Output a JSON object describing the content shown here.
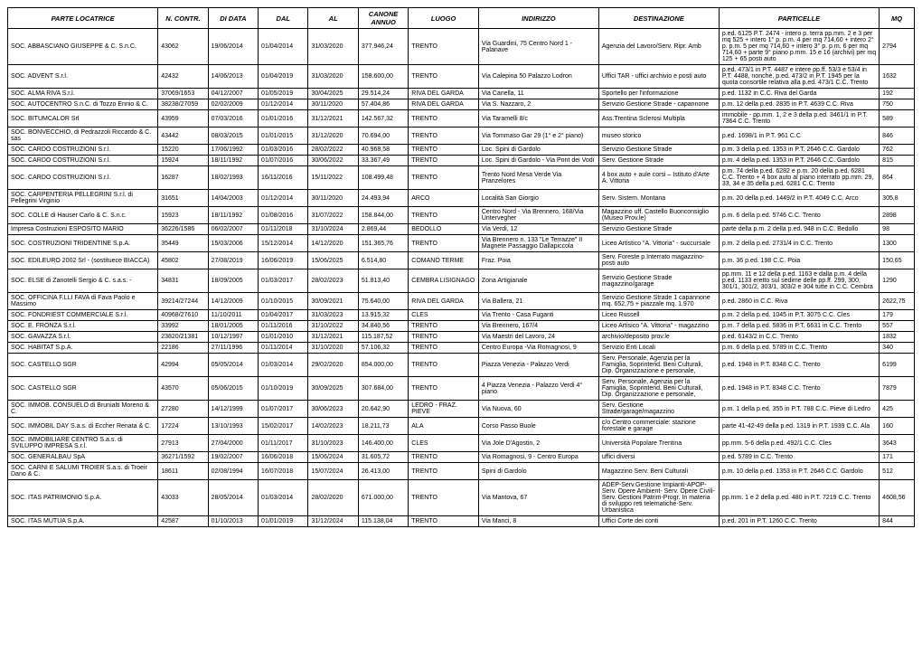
{
  "headers": [
    "PARTE LOCATRICE",
    "N. CONTR.",
    "DI DATA",
    "DAL",
    "AL",
    "CANONE ANNUO",
    "LUOGO",
    "INDIRIZZO",
    "DESTINAZIONE",
    "PARTICELLE",
    "MQ"
  ],
  "rows": [
    [
      "SOC. ABBASCIANO GIUSEPPE & C. S.n.C.",
      "43062",
      "19/06/2014",
      "01/04/2014",
      "31/03/2020",
      "377.946,24",
      "TRENTO",
      "Via Guardini, 75 Centro Nord 1 - Palanave",
      "Agenzia del Lavoro/Serv. Ripr. Amb",
      "p.ed. 6125 P.T. 2474 - intero p. terra pp.mm. 2 e 3 per mq 525 + intero 1° p. p.m. 4 per mq 714,60 + intero 2° p. p.m. 5 per mq 714,60 + intero 3° p. p.m. 6 per mq 714,60 + parte 9° piano p.mm. 15 e 16 (archivi) per mq 125 + 65 posti auto",
      "2794"
    ],
    [
      "SOC. ADVENT S.r.l.",
      "42432",
      "14/06/2013",
      "01/04/2019",
      "31/03/2020",
      "158.600,00",
      "TRENTO",
      "Via Calepina 50 Palazzo Lodron",
      "Uffici TAR - uffici archivio e posti auto",
      "p.ed. 473/1 in P.T. 4487 e intere pp.ff. 53/3 e 53/4 in P.T. 4488, nonchè, p.ed. 473/2 in P.T. 1945 per la quota consortile relativa alla p.ed. 473/1 C.C. Trento",
      "1632"
    ],
    [
      "SOC. ALMA RIVA S.r.l.",
      "37069/1653",
      "04/12/2007",
      "01/05/2019",
      "30/04/2025",
      "29.514,24",
      "RIVA DEL GARDA",
      "Via Canella, 11",
      "Sportello per l'informazione",
      "p.ed. 1132 in C.C. Riva del Garda",
      "192"
    ],
    [
      "SOC. AUTOCENTRO S.n.C. di Tozzo Ennio & C.",
      "38238/27059",
      "02/02/2009",
      "01/12/2014",
      "30/11/2020",
      "57.404,86",
      "RIVA DEL GARDA",
      "Via S. Nazzaro, 2",
      "Servizio Gestione Strade - capannone",
      "p.m. 12 della p.ed. 2835 in P.T. 4639 C.C. Riva",
      "750"
    ],
    [
      "SOC. BITUMCALOR Srl",
      "43959",
      "07/03/2016",
      "01/01/2016",
      "31/12/2021",
      "142.567,32",
      "TRENTO",
      "Via Taramelli 8/c",
      "Ass.Trentina Sclerosi Multipla",
      "immobile - pp.mm. 1, 2 e 3 della p.ed. 3461/1 in P.T. 7364 C.C. Trento",
      "589"
    ],
    [
      "SOC. BONVECCHIO, di Pedrazzoli Riccardo & C. sas",
      "43442",
      "08/03/2015",
      "01/01/2015",
      "31/12/2020",
      "70.694,00",
      "TRENTO",
      "Via Tommaso Gar 29 (1° e 2° piano)",
      "museo storico",
      "p.ed. 1698/1 in P.T. 961 C.C",
      "846"
    ],
    [
      "SOC. CARDO COSTRUZIONI S.r.l.",
      "15220",
      "17/06/1992",
      "01/03/2016",
      "28/02/2022",
      "40.968,58",
      "TRENTO",
      "Loc. Spini di Gardolo",
      "Servizio Gestione Strade",
      "p.m. 3 della p.ed. 1353 in P.T. 2646 C.C. Gardolo",
      "762"
    ],
    [
      "SOC. CARDO COSTRUZIONI S.r.l.",
      "15924",
      "18/11/1992",
      "01/07/2016",
      "30/06/2022",
      "33.367,49",
      "TRENTO",
      "Loc. Spini di Gardolo - Via Pont dei Vodi",
      "Serv. Gestione Strade",
      "p.m. 4 della p.ed. 1353 in P.T. 2646 C.C. Gardolo",
      "815"
    ],
    [
      "SOC. CARDO COSTRUZIONI S.r.l.",
      "16287",
      "18/02/1993",
      "16/11/2016",
      "15/11/2022",
      "108.499,48",
      "TRENTO",
      "Trento Nord Mesa Verde Via Pranzelores",
      "4 box auto + aule corsi – Istituto d'Arte A. Vittoria",
      "p.m. 74 della p.ed. 6282 e p.m. 20 della p.ed. 6281 C.C. Trento + 4 box auto al piano interrato pp.mm. 29, 33, 34 e 35 della p.ed. 6281 C.C. Trento",
      "864"
    ],
    [
      "SOC. CARPENTERIA PELLEGRINI S.r.l. di Pellegrini Virginio",
      "31651",
      "14/04/2003",
      "01/12/2014",
      "30/11/2020",
      "24.493,94",
      "ARCO",
      "Località San Giorgio",
      "Serv. Sistem. Montana",
      "p.m. 20 della p.ed. 1449/2 in P.T. 4049 C.C. Arco",
      "305,8"
    ],
    [
      "SOC. COLLE di Hauser Carlo & C. S.n.c.",
      "15923",
      "18/11/1992",
      "01/08/2016",
      "31/07/2022",
      "158.844,00",
      "TRENTO",
      "Centro Nord - Via Brennero, 168/Via Untervegher",
      "Magazzino uff. Castello Buonconsiglio (Museo Prov.le)",
      "p.m. 6 della p.ed. 5746 C.C. Trento",
      "2898"
    ],
    [
      "Impresa Costruzioni ESPOSITO MARIO",
      "36226/1586",
      "06/02/2007",
      "01/11/2018",
      "31/10/2024",
      "2.869,44",
      "BEDOLLO",
      "Via Verdi, 12",
      "Servizio Gestione Strade",
      "parte della p.m. 2 della p.ed. 948 in C.C. Bedollo",
      "98"
    ],
    [
      "SOC. COSTRUZIONI TRIDENTINE S.p.A.",
      "35449",
      "15/03/2006",
      "15/12/2014",
      "14/12/2020",
      "151.365,76",
      "TRENTO",
      "Via Brennero n. 133 \"Le Terrazze\" II Magnete Passaggio Dallapiccola",
      "Liceo Artistico \"A. Vittoria\" - succursale",
      "p.m. 2 della p.ed. 2731/4 in C.C. Trento",
      "1300"
    ],
    [
      "SOC. EDILEURO 2002 Srl - (sostituece BIACCA)",
      "45802",
      "27/08/2019",
      "16/06/2019",
      "15/06/2025",
      "6.514,80",
      "COMANO TERME",
      "Fraz. Poia",
      "Serv. Foreste p.Interrato magazzino-posti auto",
      "p.m. 36 p.ed. 198 C.C. Poia",
      "150,65"
    ],
    [
      "SOC. ELSE di Zanotelli Sergio & C. s.a.s. -",
      "34831",
      "18/09/2005",
      "01/03/2017",
      "28/02/2023",
      "51.813,40",
      "CEMBRA LISIGNAGO",
      "Zona Artigianale",
      "Servizio Gestione Strade magazzino/garage",
      "pp.mm. 11 e 12 della p.ed. 1163 e dalla p.m. 4 della p.ed. 1133 eretto sul sedime delle pp.ff. 299, 300, 301/1, 301/2, 303/1, 303/2 e 304 tutte in C.C. Cembra",
      "1290"
    ],
    [
      "SOC. OFFICINA F.LLI FAVA di Fava Paolo e Massimo",
      "39214/27244",
      "14/12/2009",
      "01/10/2015",
      "30/09/2021",
      "75.640,00",
      "RIVA DEL GARDA",
      "Via Ballera, 21",
      "Servizio Gestione Strade 1 capannone mq. 652,75 + piazzale mq. 1.970",
      "p.ed. 2860 in C.C. Riva",
      "2622,75"
    ],
    [
      "SOC. FONDRIEST COMMERCIALE S.r.l.",
      "40968/27610",
      "11/10/2011",
      "01/04/2017",
      "31/03/2023",
      "13.915,32",
      "CLES",
      "Via Trento - Casa Fuganti",
      "Liceo Russell",
      "p.m. 2 della p.ed. 1045 in P.T. 3075 C.C. Cles",
      "179"
    ],
    [
      "SOC. E. FRONZA S.r.l.",
      "33992",
      "18/01/2005",
      "01/11/2016",
      "31/10/2022",
      "34.840,56",
      "TRENTO",
      "Via Brennero, 167/4",
      "Liceo Artisico \"A. Vittoria\" - magazzino",
      "p.m. 7 della p.ed. 5836 in P.T. 6631 in C.C. Trento",
      "557"
    ],
    [
      "SOC. GAVAZZA S.r.l.",
      "23820/21381",
      "10/12/1997",
      "01/01/2010",
      "31/12/2021",
      "115.187,52",
      "TRENTO",
      "Via Maestri del Lavoro, 24",
      "archivio/deposito prov.le",
      "p.ed. 6143/2 in C.C. Trento",
      "1832"
    ],
    [
      "SOC. HABITAT S.p.A.",
      "22186",
      "27/11/1996",
      "01/11/2014",
      "31/10/2020",
      "57.106,32",
      "TRENTO",
      "Centro Europa -Via Romagnosi, 9",
      "Servizio Enti Locali",
      "p.m. 6 della p.ed. 5789 in C.C. Trento",
      "340"
    ],
    [
      "SOC. CASTELLO SGR",
      "42994",
      "05/05/2014",
      "01/03/2014",
      "29/02/2020",
      "854.000,00",
      "TRENTO",
      "Piazza Venezia - Palazzo Verdi",
      "Serv. Personale, Agenzia per la Famiglia, Soprintend. Beni Culturali, Dip. Organizzazione e personale,",
      "p.ed. 1948 in P.T. 8348 C.C. Trento",
      "6199"
    ],
    [
      "SOC. CASTELLO SGR",
      "43570",
      "05/06/2015",
      "01/10/2019",
      "30/09/2025",
      "307.684,00",
      "TRENTO",
      "4 Piazza Venezia - Palazzo Verdi 4° piano",
      "Serv. Personale, Agenzia per la Famiglia, Soprintend. Beni Culturali, Dip. Organizzazione e personale,",
      "p.ed. 1948 in P.T. 8348 C.C. Trento",
      "7879"
    ],
    [
      "SOC. IMMOB. CONSUELO di Brunialti Moreno & C.",
      "27280",
      "14/12/1999",
      "01/07/2017",
      "30/06/2023",
      "20.642,90",
      "LEDRO - FRAZ. PIEVE",
      "Via Nuova, 60",
      "Serv. Gestione Strade/garage/magazzino",
      "p.m. 1 della p.ed. 355 in P.T. 788 C.C. Pieve di Ledro",
      "425"
    ],
    [
      "SOC. IMMOBIL DAY S.a.s. di Eccher Renata & C.",
      "17224",
      "13/10/1993",
      "15/02/2017",
      "14/02/2023",
      "18.211,73",
      "ALA",
      "Corso Passo Buole",
      "c/o Centro commerciale: stazione forestale e garage",
      "parte 41-42-49 della p.ed. 1319 in P.T. 1939 C.C. Ala",
      "160"
    ],
    [
      "SOC. IMMOBILIARE CENTRO S.a.s. di SVILUPPO IMPRESA S.r.l.",
      "27913",
      "27/04/2000",
      "01/11/2017",
      "31/10/2023",
      "146.400,00",
      "CLES",
      "Via Jole D'Agostin, 2",
      "Università Popolare Trentina",
      "pp.mm. 5-6 della p.ed. 492/1 C.C. Cles",
      "3643"
    ],
    [
      "SOC. GENERALBAU SpA",
      "36271/1592",
      "19/02/2007",
      "16/06/2018",
      "15/06/2024",
      "31.605,72",
      "TRENTO",
      "Via Romagnosi, 9 - Centro Europa",
      "uffici diversi",
      "p.ed. 5789 in C.C. Trento",
      "171"
    ],
    [
      "SOC. CARNI E SALUMI TROIER S.a.s. di Troeir Dano & C.",
      "18611",
      "02/08/1994",
      "16/07/2018",
      "15/07/2024",
      "26.413,00",
      "TRENTO",
      "Spini di Gardolo",
      "Magazzino Serv. Beni Culturali",
      "p.m. 10 della p.ed. 1353 in P.T. 2646 C.C. Gardolo",
      "512"
    ],
    [
      "SOC. ITAS PATRIMONIO S.p.A.",
      "43033",
      "28/05/2014",
      "01/03/2014",
      "28/02/2020",
      "671.000,00",
      "TRENTO",
      "Via Mantova, 67",
      "ADEP-Serv.Gestione Impianti-APOP-Serv. Opere Ambient- Serv. Opere Civili-Serv. Gestioni Patrim-Progr. In materia di sviluppo reti telematiche-Serv. Urbanistica",
      "pp.mm. 1 e 2 della p.ed. 480 in P.T. 7219 C.C. Trento",
      "4608,56"
    ],
    [
      "SOC. ITAS MUTUA S.p.A.",
      "42587",
      "01/10/2013",
      "01/01/2019",
      "31/12/2024",
      "115.138,04",
      "TRENTO",
      "Via Manci, 8",
      "Uffici Corte dei conti",
      "p.ed. 201 in P.T. 1260 C.C. Trento",
      "844"
    ]
  ]
}
